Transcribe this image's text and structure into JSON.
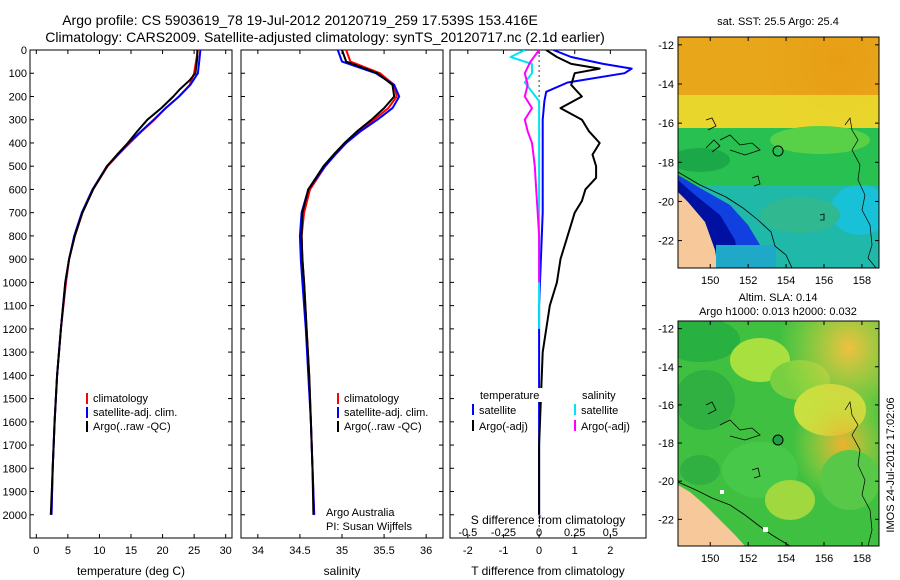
{
  "title_line1": "Argo profile: CS 5903619_78 19-Jul-2012 20120719_259 17.539S 153.416E",
  "title_line2": "Climatology: CARS2009. Satellite-adjusted climatology: synTS_20120717.nc (2.1d earlier)",
  "colors": {
    "climatology": "#ff0000",
    "satellite": "#0000ff",
    "argo": "#000000",
    "satellite_s": "#00e5ee",
    "argo_s": "#ff00ff"
  },
  "chart_data": [
    {
      "type": "line",
      "id": "temperature",
      "xlabel": "temperature (deg C)",
      "ylabel": "",
      "xlim": [
        -1,
        31
      ],
      "ylim": [
        2100,
        0
      ],
      "xticks": [
        "0",
        "5",
        "10",
        "15",
        "20",
        "25",
        "30"
      ],
      "yticks": [
        "0",
        "100",
        "200",
        "300",
        "400",
        "500",
        "600",
        "700",
        "800",
        "900",
        "1000",
        "1100",
        "1200",
        "1300",
        "1400",
        "1500",
        "1600",
        "1700",
        "1800",
        "1900",
        "2000"
      ],
      "legend": [
        "climatology",
        "satellite-adj. clim.",
        "Argo(..raw -QC)"
      ],
      "series": [
        {
          "name": "climatology",
          "depth": [
            0,
            50,
            100,
            150,
            200,
            250,
            300,
            350,
            400,
            450,
            500,
            600,
            700,
            800,
            900,
            1000,
            1200,
            1400,
            1600,
            1800,
            2000
          ],
          "values": [
            25.6,
            25.3,
            25.0,
            24.3,
            22.6,
            20.5,
            18.7,
            16.7,
            14.8,
            13.0,
            11.3,
            9.0,
            7.3,
            6.1,
            5.2,
            4.7,
            3.9,
            3.3,
            2.9,
            2.6,
            2.4
          ]
        },
        {
          "name": "satellite",
          "depth": [
            0,
            50,
            100,
            150,
            200,
            250,
            300,
            350,
            400,
            450,
            500,
            600,
            700,
            800,
            900,
            1000,
            1200,
            1400,
            1600,
            1800,
            2000
          ],
          "values": [
            26.0,
            25.8,
            25.6,
            24.4,
            22.6,
            20.5,
            18.6,
            16.6,
            14.6,
            12.9,
            11.2,
            8.9,
            7.2,
            6.0,
            5.2,
            4.6,
            3.9,
            3.3,
            2.9,
            2.6,
            2.4
          ]
        },
        {
          "name": "argo",
          "depth": [
            0,
            30,
            60,
            100,
            130,
            170,
            200,
            250,
            300,
            350,
            400,
            450,
            500,
            600,
            700,
            800,
            900,
            1000,
            1200,
            1400,
            1600,
            1800,
            2000
          ],
          "values": [
            25.5,
            25.5,
            25.4,
            25.2,
            24.3,
            22.7,
            21.7,
            19.8,
            17.6,
            16.0,
            14.5,
            12.8,
            11.2,
            9.0,
            7.3,
            6.1,
            5.2,
            4.6,
            3.9,
            3.3,
            2.9,
            2.6,
            2.3
          ]
        }
      ]
    },
    {
      "type": "line",
      "id": "salinity",
      "xlabel": "salinity",
      "ylabel": "",
      "xlim": [
        33.8,
        36.2
      ],
      "ylim": [
        2100,
        0
      ],
      "xticks": [
        "34",
        "34.5",
        "35",
        "35.5",
        "36"
      ],
      "legend": [
        "climatology",
        "satellite-adj. clim.",
        "Argo(..raw -QC)"
      ],
      "annotation": [
        "Argo Australia",
        "PI: Susan Wijffels"
      ],
      "series": [
        {
          "name": "climatology",
          "depth": [
            0,
            50,
            100,
            150,
            200,
            250,
            300,
            350,
            400,
            450,
            500,
            600,
            700,
            800,
            900,
            1000,
            1200,
            1400,
            1600,
            1800,
            2000
          ],
          "values": [
            35.05,
            35.1,
            35.45,
            35.62,
            35.65,
            35.55,
            35.38,
            35.2,
            35.05,
            34.92,
            34.8,
            34.62,
            34.55,
            34.52,
            34.53,
            34.55,
            34.58,
            34.61,
            34.63,
            34.65,
            34.67
          ]
        },
        {
          "name": "satellite",
          "depth": [
            0,
            50,
            100,
            150,
            200,
            250,
            300,
            350,
            400,
            450,
            500,
            600,
            700,
            800,
            900,
            1000,
            1200,
            1400,
            1600,
            1800,
            2000
          ],
          "values": [
            34.95,
            35.0,
            35.4,
            35.62,
            35.68,
            35.6,
            35.42,
            35.22,
            35.05,
            34.92,
            34.8,
            34.6,
            34.52,
            34.5,
            34.51,
            34.53,
            34.57,
            34.6,
            34.63,
            34.65,
            34.67
          ]
        },
        {
          "name": "argo",
          "depth": [
            0,
            50,
            100,
            150,
            200,
            250,
            300,
            350,
            400,
            450,
            500,
            600,
            700,
            800,
            900,
            1000,
            1200,
            1400,
            1600,
            1800,
            2000
          ],
          "values": [
            35.0,
            35.05,
            35.42,
            35.6,
            35.62,
            35.5,
            35.35,
            35.18,
            35.03,
            34.9,
            34.78,
            34.6,
            34.53,
            34.52,
            34.53,
            34.55,
            34.58,
            34.61,
            34.63,
            34.65,
            34.66
          ]
        }
      ]
    },
    {
      "type": "line",
      "id": "differences",
      "xlabel_top": "S difference from climatology",
      "xlabel": "T difference from climatology",
      "xlim": [
        -2.5,
        3.0
      ],
      "ylim": [
        2100,
        0
      ],
      "xticks": [
        "-2",
        "-1",
        "0",
        "1",
        "2"
      ],
      "xticks_s": [
        "-0.5",
        "-0.25",
        "0",
        "0.25",
        "0.5"
      ],
      "legend_t": {
        "heading": "temperature",
        "items": [
          "satellite",
          "Argo(-adj)"
        ]
      },
      "legend_s": {
        "heading": "salinity",
        "items": [
          "satellite",
          "Argo(-adj)"
        ]
      },
      "series": [
        {
          "name": "T satellite",
          "depth": [
            0,
            30,
            60,
            80,
            100,
            140,
            180,
            220,
            300,
            400,
            500,
            700,
            900,
            1100,
            1300,
            1600,
            1900,
            2000
          ],
          "values": [
            0.4,
            0.9,
            1.8,
            2.6,
            2.4,
            0.8,
            0.2,
            0.15,
            0.1,
            0.1,
            0.1,
            0.1,
            0.05,
            0.0,
            0.0,
            0.0,
            0.0,
            0.0
          ]
        },
        {
          "name": "T argo",
          "depth": [
            0,
            30,
            60,
            80,
            100,
            150,
            200,
            250,
            300,
            350,
            400,
            450,
            500,
            550,
            600,
            650,
            700,
            800,
            900,
            1000,
            1100,
            1300,
            1500,
            1700,
            1900,
            2000
          ],
          "values": [
            0.2,
            0.5,
            0.9,
            1.7,
            1.0,
            0.9,
            1.2,
            0.6,
            1.2,
            1.4,
            1.7,
            1.5,
            1.6,
            1.6,
            1.3,
            1.2,
            1.0,
            0.8,
            0.6,
            0.5,
            0.3,
            0.1,
            0.05,
            0.0,
            0.0,
            0.0
          ]
        },
        {
          "name": "S satellite",
          "depth": [
            0,
            30,
            60,
            100,
            140,
            180,
            220,
            300,
            400,
            600,
            800,
            1000,
            1200
          ],
          "values": [
            -0.1,
            -0.2,
            -0.05,
            -0.05,
            -0.1,
            -0.05,
            0.0,
            0.0,
            0.0,
            0.0,
            0.0,
            0.0,
            0.0
          ]
        },
        {
          "name": "S argo",
          "depth": [
            0,
            50,
            100,
            150,
            200,
            250,
            300,
            350,
            400,
            450,
            500,
            600,
            700,
            800,
            900,
            1000
          ],
          "values": [
            0.0,
            -0.06,
            -0.1,
            -0.08,
            -0.1,
            -0.05,
            -0.1,
            -0.08,
            -0.05,
            -0.04,
            -0.03,
            -0.02,
            -0.01,
            0.0,
            0.0,
            0.0
          ]
        }
      ]
    }
  ],
  "maps": [
    {
      "id": "sst",
      "title": "sat. SST: 25.5 Argo: 25.4",
      "title2": "",
      "lat_ticks": [
        "-12",
        "-14",
        "-16",
        "-18",
        "-20",
        "-22"
      ],
      "lon_ticks": [
        "150",
        "152",
        "154",
        "156",
        "158"
      ]
    },
    {
      "id": "sla",
      "title": "Altim. SLA: 0.14",
      "title2": "Argo h1000: 0.013 h2000: 0.032",
      "lat_ticks": [
        "-12",
        "-14",
        "-16",
        "-18",
        "-20",
        "-22"
      ],
      "lon_ticks": [
        "150",
        "152",
        "154",
        "156",
        "158"
      ]
    }
  ],
  "footer": "IMOS 24-Jul-2012 17:02:06"
}
